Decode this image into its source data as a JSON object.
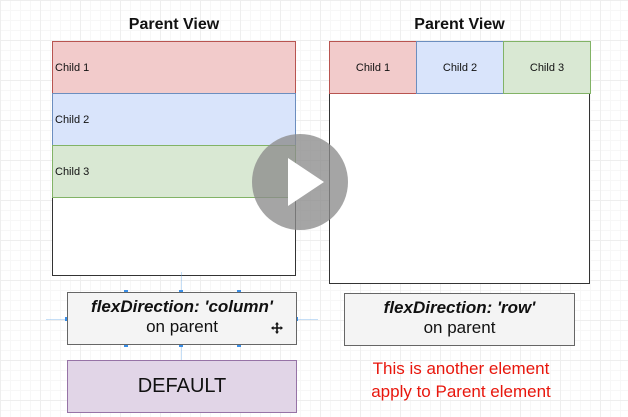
{
  "left": {
    "title": "Parent View",
    "children": [
      "Child 1",
      "Child 2",
      "Child 3"
    ],
    "label_line1": "flexDirection: 'column'",
    "label_line2": "on parent",
    "default_label": "DEFAULT"
  },
  "right": {
    "title": "Parent View",
    "children": [
      "Child 1",
      "Child 2",
      "Child 3"
    ],
    "label_line1": "flexDirection: 'row'",
    "label_line2": "on parent",
    "note_line1": "This is another element",
    "note_line2": "apply to Parent element"
  },
  "overlay": {
    "play_icon": "play-icon",
    "move_cursor_icon": "move-cursor-icon"
  },
  "colors": {
    "child1_fill": "#f2cbcb",
    "child2_fill": "#d9e4fb",
    "child3_fill": "#d9e8d3",
    "default_fill": "#e1d5e7",
    "note_text": "#e8160c"
  }
}
